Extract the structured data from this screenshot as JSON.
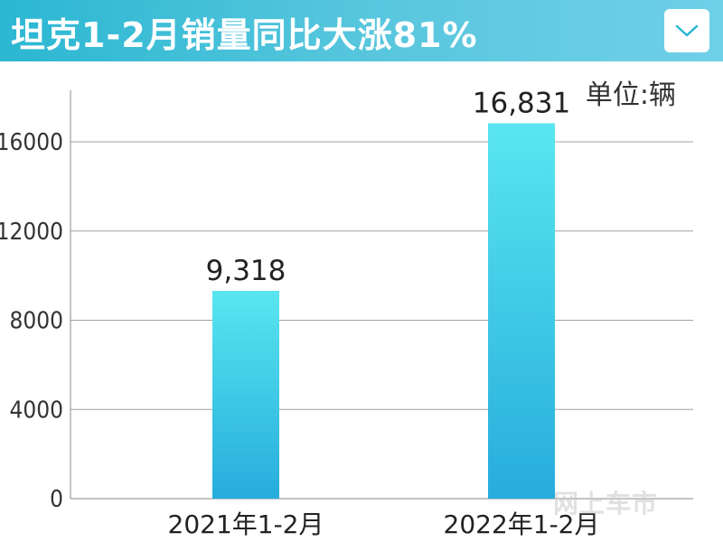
{
  "header": {
    "title": "坦克1-2月销量同比大涨81%",
    "dropdown_icon": "chevron-down-icon"
  },
  "unit_label": "单位:辆",
  "watermark": "网上车市",
  "colors": {
    "header_start": "#2bb7d2",
    "header_end": "#6fd0e8",
    "bar_top": "#59e6f0",
    "bar_bottom": "#27acdc",
    "grid": "#a0a0a0"
  },
  "chart_data": {
    "type": "bar",
    "categories": [
      "2021年1-2月",
      "2022年1-2月"
    ],
    "values": [
      9318,
      16831
    ],
    "value_labels": [
      "9,318",
      "16,831"
    ],
    "y_ticks": [
      0,
      4000,
      8000,
      12000,
      16000
    ],
    "ylim": [
      0,
      18000
    ],
    "grid": true
  }
}
